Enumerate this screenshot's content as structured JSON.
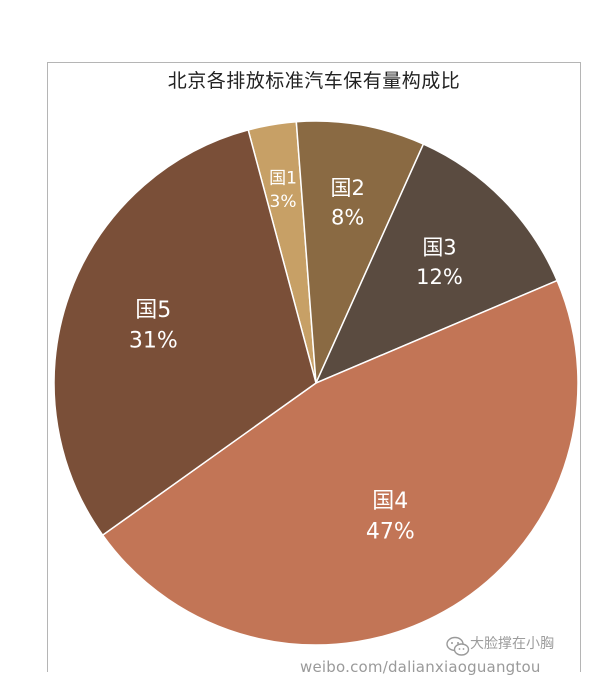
{
  "chart_data": {
    "type": "pie",
    "title": "北京各排放标准汽车保有量构成比",
    "slices": [
      {
        "label": "国1",
        "value": 3,
        "display": "3%",
        "color": "#c7a066",
        "text_color": "#ffffff"
      },
      {
        "label": "国2",
        "value": 8,
        "display": "8%",
        "color": "#8a6a43",
        "text_color": "#ffffff"
      },
      {
        "label": "国3",
        "value": 12,
        "display": "12%",
        "color": "#5a4b40",
        "text_color": "#ffffff"
      },
      {
        "label": "国4",
        "value": 47,
        "display": "47%",
        "color": "#c27556",
        "text_color": "#ffffff"
      },
      {
        "label": "国5",
        "value": 31,
        "display": "31%",
        "color": "#7a4f38",
        "text_color": "#ffffff"
      }
    ],
    "legend": "none"
  },
  "watermark": {
    "url": "weibo.com/dalianxiaoguangtou",
    "brand": "大脸撑在小胸"
  }
}
